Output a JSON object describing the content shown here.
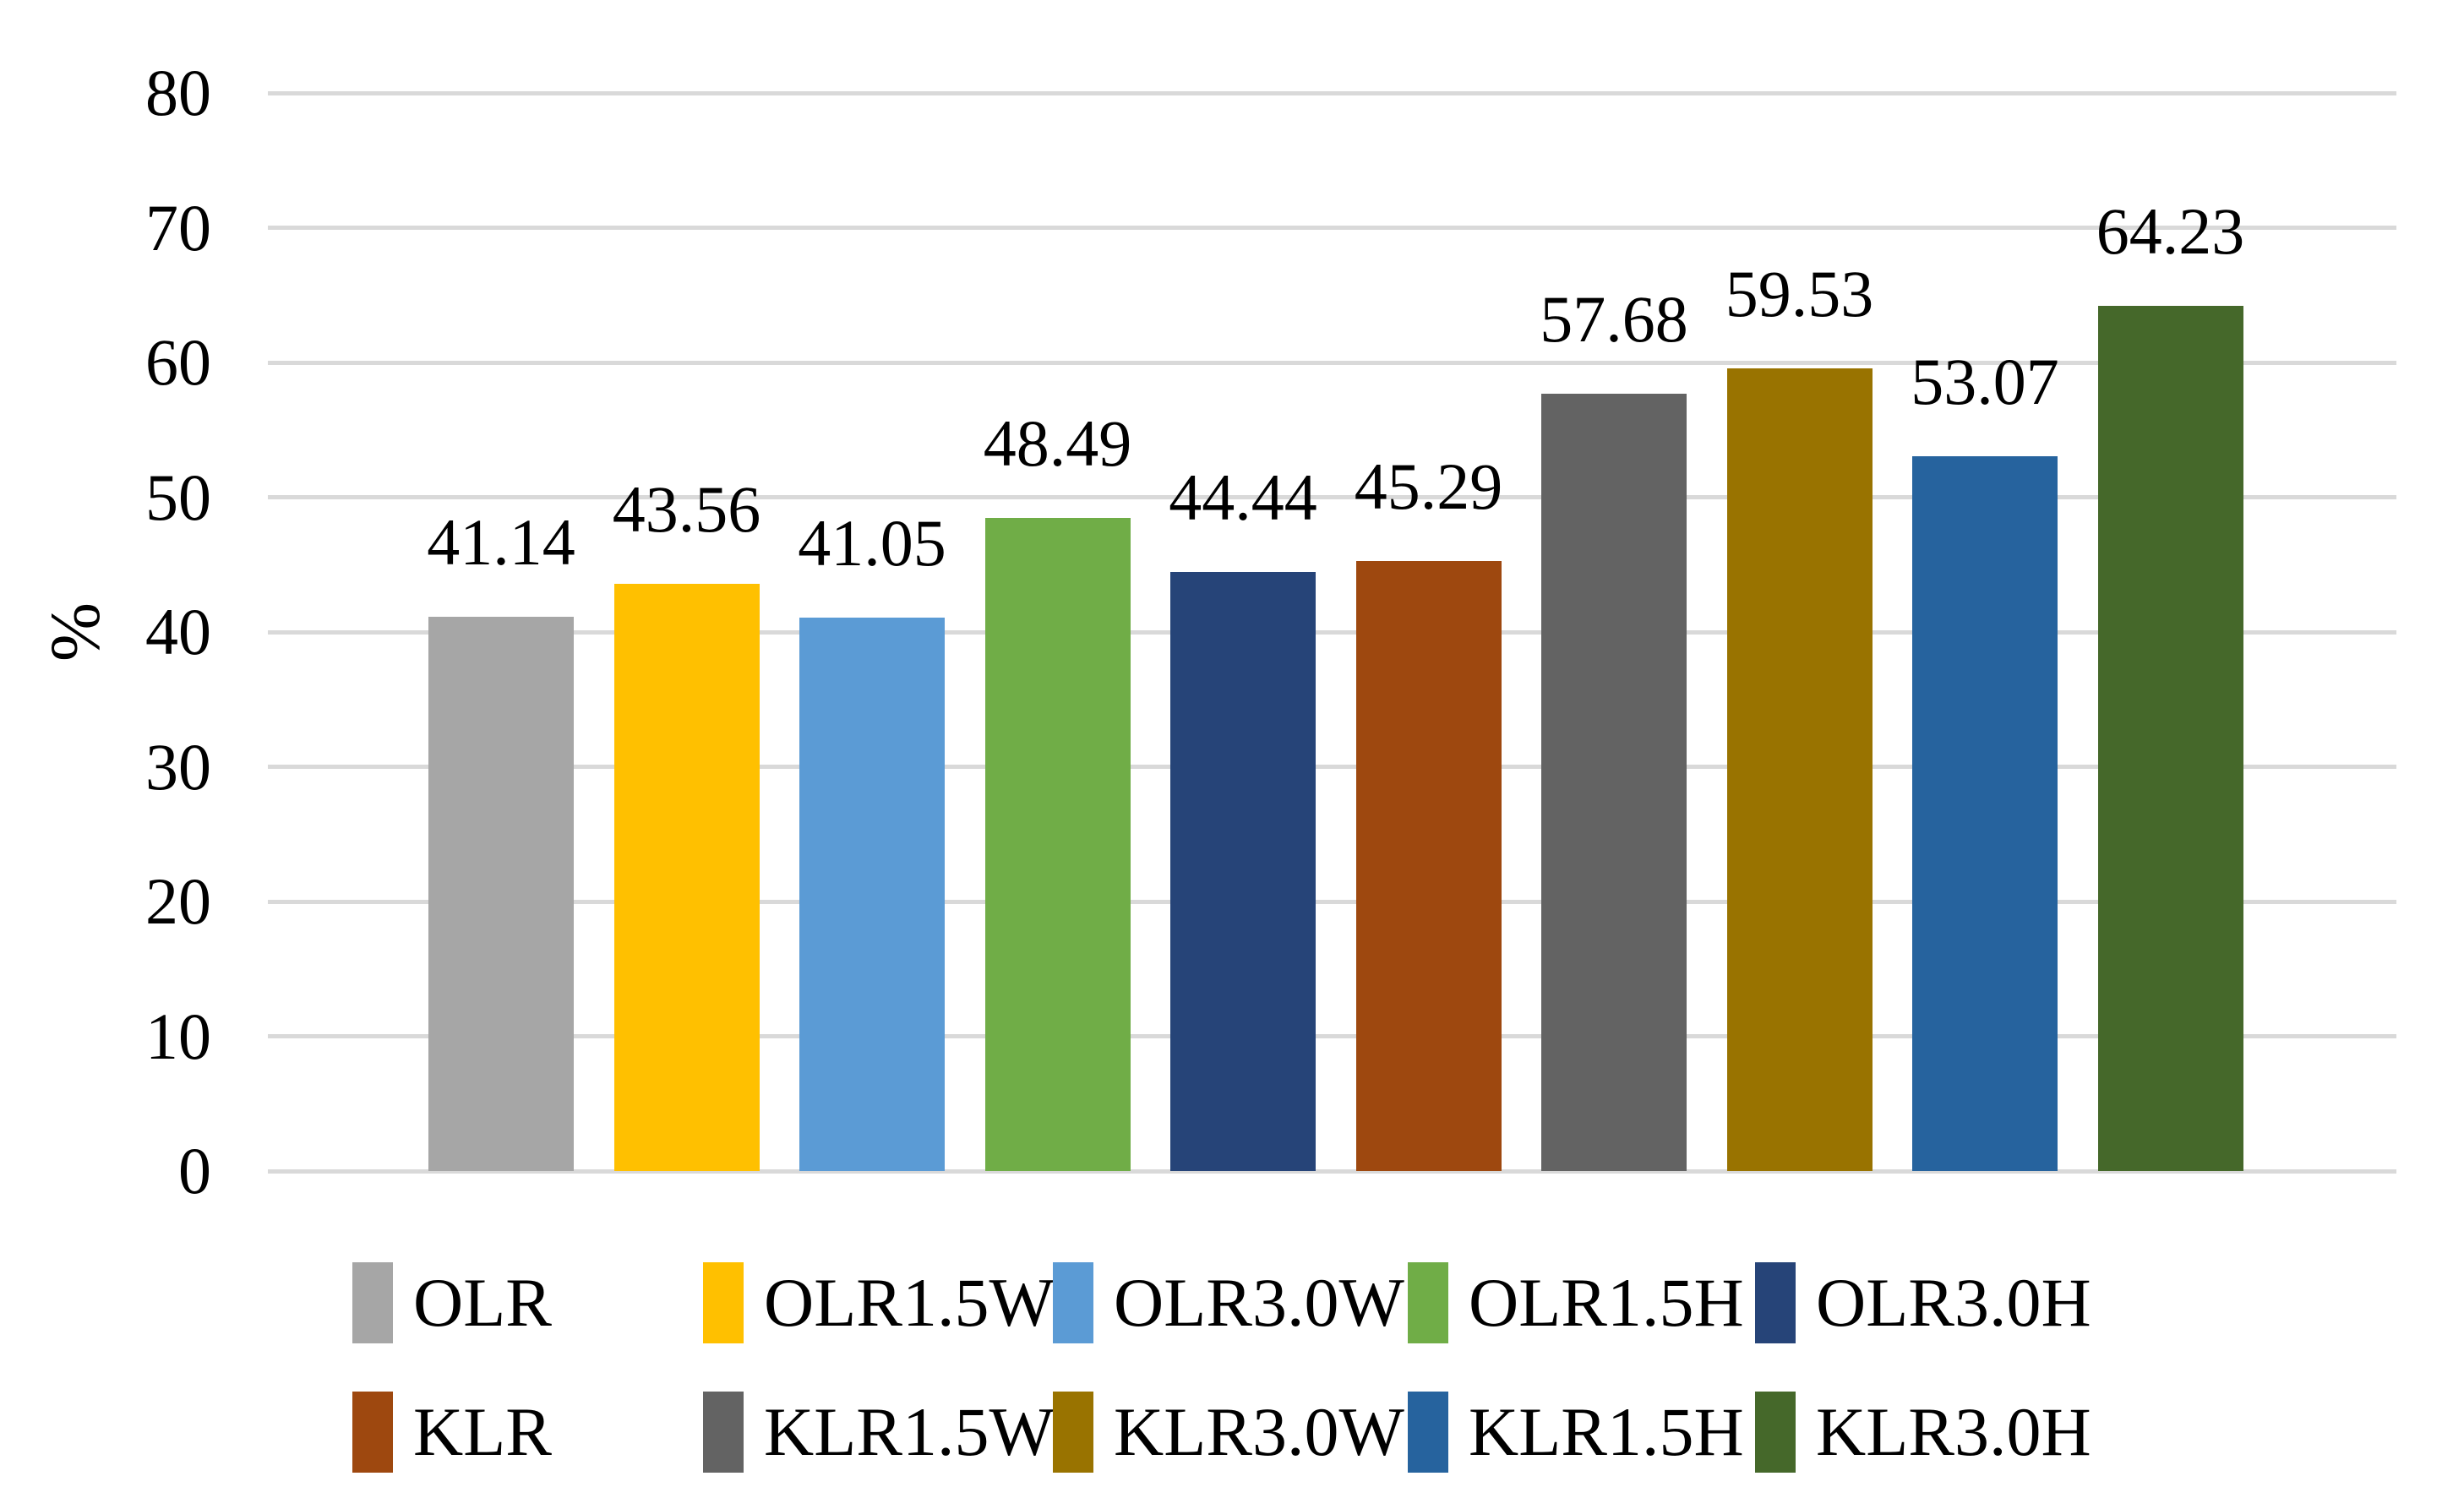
{
  "chart_data": {
    "type": "bar",
    "title": "",
    "xlabel": "",
    "ylabel": "%",
    "ylim": [
      0,
      80
    ],
    "yticks": [
      0,
      10,
      20,
      30,
      40,
      50,
      60,
      70,
      80
    ],
    "grid": "horizontal",
    "gridline_color": "#D9D9D9",
    "background_color": "#FFFFFF",
    "legend_position": "bottom-two-rows",
    "categories": [
      "OLR",
      "OLR1.5W",
      "OLR3.0W",
      "OLR1.5H",
      "OLR3.0H",
      "KLR",
      "KLR1.5W",
      "KLR3.0W",
      "KLR1.5H",
      "KLR3.0H"
    ],
    "values": [
      41.14,
      43.56,
      41.05,
      48.49,
      44.44,
      45.29,
      57.68,
      59.53,
      53.07,
      64.23
    ],
    "series": [
      {
        "label": "OLR",
        "value": 41.14,
        "value_label": "41.14",
        "color": "#A6A6A6"
      },
      {
        "label": "OLR1.5W",
        "value": 43.56,
        "value_label": "43.56",
        "color": "#FFC000"
      },
      {
        "label": "OLR3.0W",
        "value": 41.05,
        "value_label": "41.05",
        "color": "#5B9BD5"
      },
      {
        "label": "OLR1.5H",
        "value": 48.49,
        "value_label": "48.49",
        "color": "#70AD47"
      },
      {
        "label": "OLR3.0H",
        "value": 44.44,
        "value_label": "44.44",
        "color": "#264478"
      },
      {
        "label": "KLR",
        "value": 45.29,
        "value_label": "45.29",
        "color": "#9E480F"
      },
      {
        "label": "KLR1.5W",
        "value": 57.68,
        "value_label": "57.68",
        "color": "#636363"
      },
      {
        "label": "KLR3.0W",
        "value": 59.53,
        "value_label": "59.53",
        "color": "#997300"
      },
      {
        "label": "KLR1.5H",
        "value": 53.07,
        "value_label": "53.07",
        "color": "#26639E"
      },
      {
        "label": "KLR3.0H",
        "value": 64.23,
        "value_label": "64.23",
        "color": "#45682A"
      }
    ],
    "legend_rows": [
      [
        "OLR",
        "OLR1.5W",
        "OLR3.0W",
        "OLR1.5H",
        "OLR3.0H"
      ],
      [
        "KLR",
        "KLR1.5W",
        "KLR3.0W",
        "KLR1.5H",
        "KLR3.0H"
      ]
    ]
  }
}
